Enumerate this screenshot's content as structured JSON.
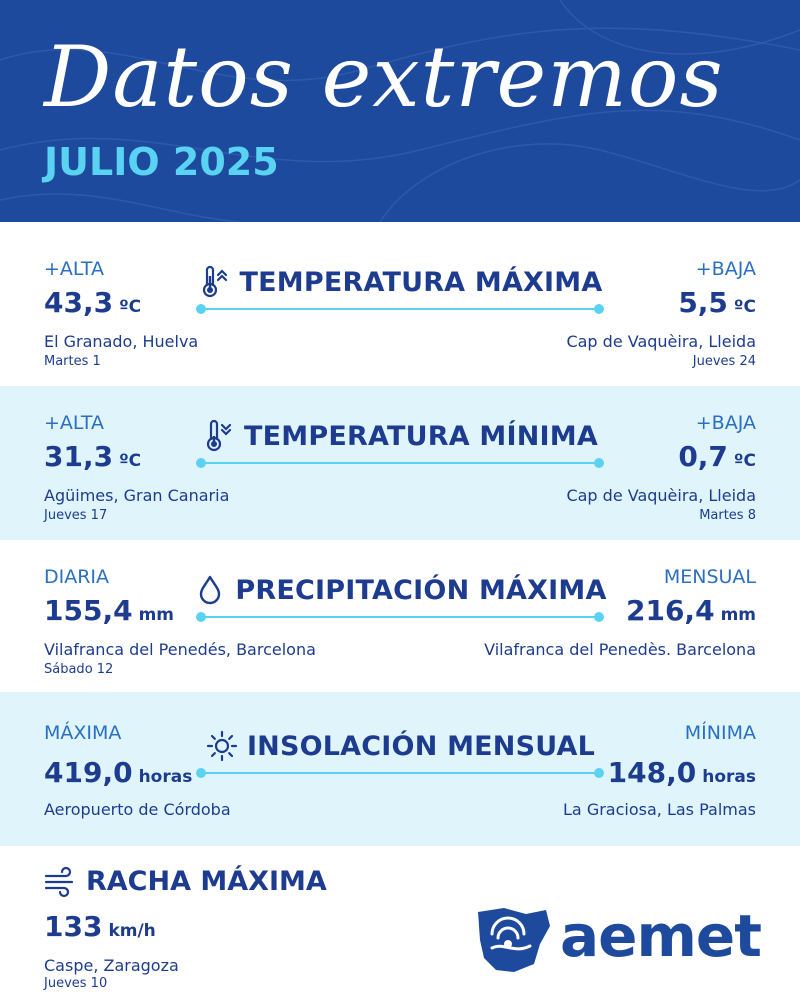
{
  "header": {
    "title": "Datos extremos",
    "subtitle": "JULIO 2025",
    "bg_color": "#1e4a9e",
    "accent": "#5ad2f2"
  },
  "sections": [
    {
      "title": "TEMPERATURA MÁXIMA",
      "icon": "thermometer-up-icon",
      "left": {
        "label": "+ALTA",
        "value": "43,3",
        "unit": "ºC",
        "location": "El Granado, Huelva",
        "date": "Martes 1"
      },
      "right": {
        "label": "+BAJA",
        "value": "5,5",
        "unit": "ºC",
        "location": "Cap de Vaquèira, Lleida",
        "date": "Jueves 24"
      }
    },
    {
      "title": "TEMPERATURA MÍNIMA",
      "icon": "thermometer-down-icon",
      "left": {
        "label": "+ALTA",
        "value": "31,3",
        "unit": "ºC",
        "location": "Agüimes, Gran Canaria",
        "date": "Jueves 17"
      },
      "right": {
        "label": "+BAJA",
        "value": "0,7",
        "unit": "ºC",
        "location": "Cap de Vaquèira, Lleida",
        "date": "Martes 8"
      }
    },
    {
      "title": "PRECIPITACIÓN MÁXIMA",
      "icon": "water-drop-icon",
      "left": {
        "label": "DIARIA",
        "value": "155,4",
        "unit": "mm",
        "location": "Vilafranca del Penedés, Barcelona",
        "date": "Sábado 12"
      },
      "right": {
        "label": "MENSUAL",
        "value": "216,4",
        "unit": "mm",
        "location": "Vilafranca del Penedès. Barcelona",
        "date": ""
      }
    },
    {
      "title": "INSOLACIÓN MENSUAL",
      "icon": "sun-icon",
      "left": {
        "label": "MÁXIMA",
        "value": "419,0",
        "unit": "horas",
        "location": "Aeropuerto de Córdoba",
        "date": ""
      },
      "right": {
        "label": "MÍNIMA",
        "value": "148,0",
        "unit": "horas",
        "location": "La Graciosa,  Las Palmas",
        "date": ""
      }
    }
  ],
  "wind": {
    "title": "RACHA MÁXIMA",
    "icon": "wind-icon",
    "value": "133",
    "unit": "km/h",
    "location": "Caspe, Zaragoza",
    "date": "Jueves 10"
  },
  "logo": {
    "text": "aemet",
    "icon": "aemet-logo-icon"
  }
}
